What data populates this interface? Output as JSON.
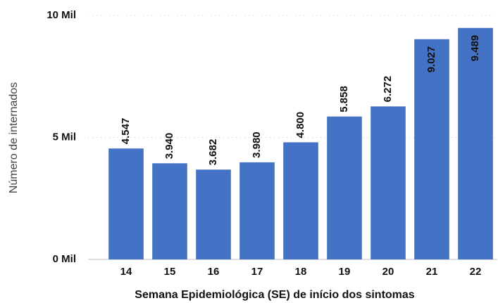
{
  "chart_data": {
    "type": "bar",
    "x_label": "Semana Epidemiológica (SE) de início dos sintomas",
    "y_label": "Número de internados",
    "categories": [
      "14",
      "15",
      "16",
      "17",
      "18",
      "19",
      "20",
      "21",
      "22"
    ],
    "values": [
      4547,
      3940,
      3682,
      3980,
      4800,
      5858,
      6272,
      9027,
      9489
    ],
    "value_labels": [
      "4.547",
      "3.940",
      "3.682",
      "3.980",
      "4.800",
      "5.858",
      "6.272",
      "9.027",
      "9.489"
    ],
    "color": "#4472c4",
    "ylim": [
      0,
      10000
    ],
    "yticks": [
      {
        "value": 0,
        "label": "0 Mil"
      },
      {
        "value": 5000,
        "label": "5 Mil"
      },
      {
        "value": 10000,
        "label": "10 Mil"
      }
    ],
    "grid": true
  }
}
